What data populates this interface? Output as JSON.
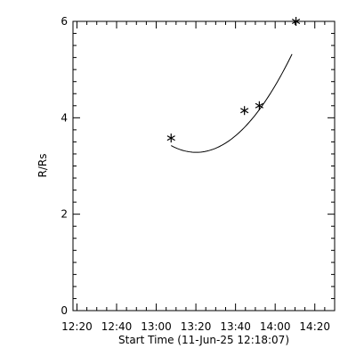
{
  "chart_data": {
    "type": "scatter",
    "xlabel": "Start Time (11-Jun-25 12:18:07)",
    "ylabel": "R/Rs",
    "x_ticks": [
      "12:20",
      "12:40",
      "13:00",
      "13:20",
      "13:40",
      "14:00",
      "14:20"
    ],
    "x_tick_minutes": [
      2,
      22,
      42,
      62,
      82,
      102,
      122
    ],
    "xlim_minutes": [
      0,
      132
    ],
    "y_ticks": [
      "0",
      "2",
      "4",
      "6"
    ],
    "y_tick_values": [
      0,
      2,
      4,
      6
    ],
    "ylim": [
      0,
      6
    ],
    "points": {
      "name": "",
      "marker": "asterisk",
      "x_minutes": [
        49.5,
        86.5,
        94.0,
        112.5
      ],
      "y": [
        3.58,
        4.15,
        4.25,
        6.0
      ]
    },
    "fit": {
      "name": "",
      "type": "quadratic",
      "x_start": 49.5,
      "x_end": 110.5,
      "coefficients": [
        0.0008713,
        -0.1083,
        6.649
      ]
    },
    "grid": false,
    "legend": "none"
  }
}
